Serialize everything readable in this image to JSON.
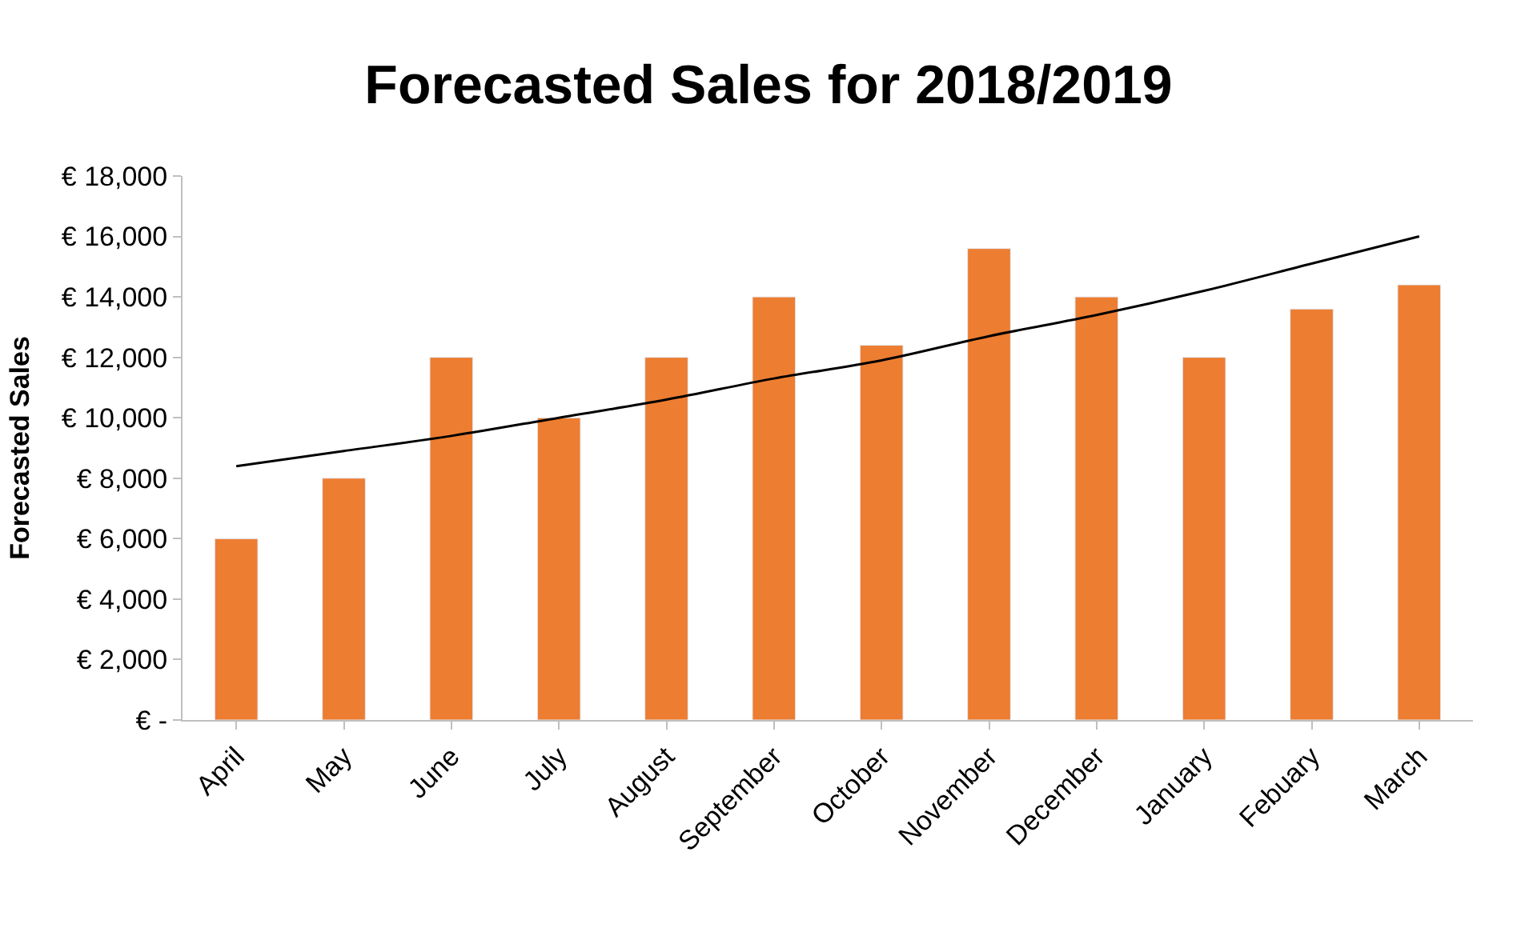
{
  "chart_data": {
    "type": "bar",
    "title": "Forecasted Sales for 2018/2019",
    "ylabel": "Forecasted Sales",
    "categories": [
      "April",
      "May",
      "June",
      "July",
      "August",
      "September",
      "October",
      "November",
      "December",
      "January",
      "Febuary",
      "March"
    ],
    "series": [
      {
        "color": "#ed7d31",
        "values": [
          6000,
          8000,
          12000,
          10000,
          12000,
          14000,
          12400,
          15600,
          14000,
          12000,
          13600,
          14400
        ]
      },
      {
        "type": "line",
        "color": "#000000",
        "values": [
          8400,
          8900,
          9400,
          10000,
          10600,
          11300,
          11900,
          12700,
          13400,
          14200,
          15100,
          16000
        ]
      }
    ],
    "ylim": [
      0,
      18000
    ],
    "yticks": [
      {
        "value": 0,
        "label": "€ -"
      },
      {
        "value": 2000,
        "label": "€ 2,000"
      },
      {
        "value": 4000,
        "label": "€ 4,000"
      },
      {
        "value": 6000,
        "label": "€ 6,000"
      },
      {
        "value": 8000,
        "label": "€ 8,000"
      },
      {
        "value": 10000,
        "label": "€ 10,000"
      },
      {
        "value": 12000,
        "label": "€ 12,000"
      },
      {
        "value": 14000,
        "label": "€ 14,000"
      },
      {
        "value": 16000,
        "label": "€ 16,000"
      },
      {
        "value": 18000,
        "label": "€ 18,000"
      }
    ]
  }
}
